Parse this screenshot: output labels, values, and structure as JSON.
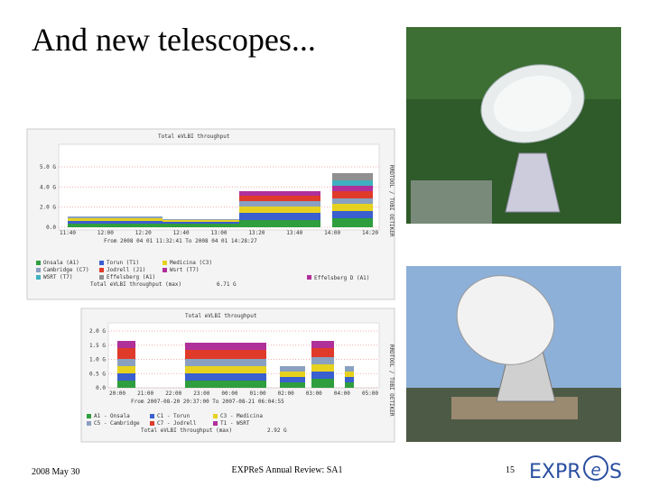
{
  "title": "And new telescopes...",
  "graph1": {
    "title": "Total eVLBI throughput",
    "side": "RRDTOOL / TOBI OETIKER",
    "yticks": [
      "5.0 G",
      "4.0 G",
      "2.0 G",
      "0.0"
    ],
    "xticks": [
      "11:40",
      "12:00",
      "12:20",
      "12:40",
      "13:00",
      "13:20",
      "13:40",
      "14:00",
      "14:20"
    ],
    "range": "From 2008 04 01 11:32:41 To 2008 04 01 14:28:27",
    "legend": [
      "Onsala (A1)",
      "Torun (T1)",
      "Medicina (C3)",
      "Cambridge (C7)",
      "Jodrell (J1)",
      "Wsrt (T7)",
      "WSRT (T7)",
      "Effelsberg (A1)"
    ],
    "total_label": "Total eVLBI throughput (max)",
    "total_value": "6.71 G",
    "extra_legend": "Effelsberg D (A1)"
  },
  "graph2": {
    "title": "Total eVLBI throughput",
    "side": "RRDTOOL / TOBI OETIKER",
    "yticks": [
      "2.0 G",
      "1.5 G",
      "1.0 G",
      "0.5 G",
      "0.0"
    ],
    "xticks": [
      "20:00",
      "21:00",
      "22:00",
      "23:00",
      "00:00",
      "01:00",
      "02:00",
      "03:00",
      "04:00",
      "05:00"
    ],
    "range": "From 2007-08-20 20:37:00 To 2007-08-21 06:04:55",
    "legend": [
      "A1 - Onsala",
      "C1 - Torun",
      "C3 - Medicina",
      "C5 - Cambridge",
      "C7 - Jodrell",
      "T1 - WSRT"
    ],
    "total_label": "Total eVLBI throughput (max)",
    "total_value": "2.92 G"
  },
  "footer": {
    "date": "2008 May 30",
    "center": "EXPReS Annual Review: SA1",
    "page": "15",
    "logo": [
      "EXPR",
      "e",
      "S"
    ]
  }
}
